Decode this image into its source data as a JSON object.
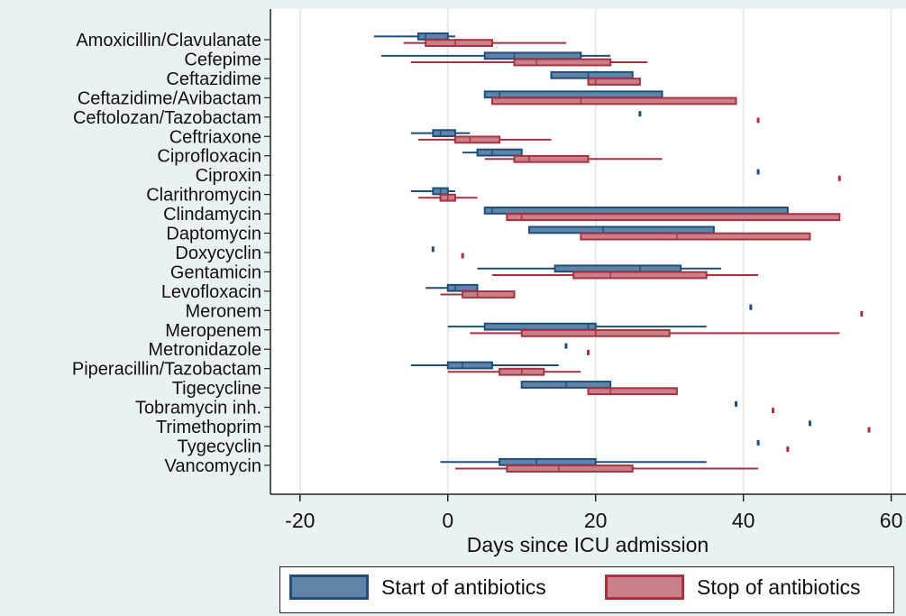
{
  "chart_data": {
    "type": "box",
    "orientation": "horizontal",
    "xlabel": "Days since ICU admission",
    "xlim": [
      -24,
      62
    ],
    "xticks": [
      -20,
      0,
      20,
      40,
      60
    ],
    "grid": true,
    "legend_position": "bottom",
    "categories": [
      "Amoxicillin/Clavulanate",
      "Cefepime",
      "Ceftazidime",
      "Ceftazidime/Avibactam",
      "Ceftolozan/Tazobactam",
      "Ceftriaxone",
      "Ciprofloxacin",
      "Ciproxin",
      "Clarithromycin",
      "Clindamycin",
      "Daptomycin",
      "Doxycyclin",
      "Gentamicin",
      "Levofloxacin",
      "Meronem",
      "Meropenem",
      "Metronidazole",
      "Piperacillin/Tazobactam",
      "Tigecycline",
      "Tobramycin inh.",
      "Trimethoprim",
      "Tygecyclin",
      "Vancomycin"
    ],
    "series": [
      {
        "name": "Start of antibiotics",
        "color": "#1f4e79",
        "fill": "#5f84a8",
        "boxes": [
          {
            "min": -10,
            "q1": -4,
            "median": -3,
            "q3": 0,
            "max": 1
          },
          {
            "min": -9,
            "q1": 5,
            "median": 9,
            "q3": 18,
            "max": 22
          },
          {
            "min": 14,
            "q1": 14,
            "median": 19,
            "q3": 25,
            "max": 25
          },
          {
            "min": 5,
            "q1": 5,
            "median": 7,
            "q3": 29,
            "max": 29
          },
          {
            "min": 26,
            "q1": 26,
            "median": 26,
            "q3": 26,
            "max": 26
          },
          {
            "min": -5,
            "q1": -2,
            "median": -1,
            "q3": 1,
            "max": 3
          },
          {
            "min": 2,
            "q1": 4,
            "median": 6,
            "q3": 10,
            "max": 10
          },
          {
            "min": 42,
            "q1": 42,
            "median": 42,
            "q3": 42,
            "max": 42
          },
          {
            "min": -5,
            "q1": -2,
            "median": -1,
            "q3": 0,
            "max": 1
          },
          {
            "min": 5,
            "q1": 5,
            "median": 6,
            "q3": 46,
            "max": 46
          },
          {
            "min": 11,
            "q1": 11,
            "median": 21,
            "q3": 36,
            "max": 36
          },
          {
            "min": -2,
            "q1": -2,
            "median": -2,
            "q3": -2,
            "max": -2
          },
          {
            "min": 4,
            "q1": 14.5,
            "median": 26,
            "q3": 31.5,
            "max": 37
          },
          {
            "min": -3,
            "q1": 0,
            "median": 1,
            "q3": 4,
            "max": 4
          },
          {
            "min": 41,
            "q1": 41,
            "median": 41,
            "q3": 41,
            "max": 41
          },
          {
            "min": 0,
            "q1": 5,
            "median": 19,
            "q3": 20,
            "max": 35
          },
          {
            "min": 16,
            "q1": 16,
            "median": 16,
            "q3": 16,
            "max": 16
          },
          {
            "min": -5,
            "q1": 0,
            "median": 2,
            "q3": 6,
            "max": 15
          },
          {
            "min": 10,
            "q1": 10,
            "median": 16,
            "q3": 22,
            "max": 22
          },
          {
            "min": 39,
            "q1": 39,
            "median": 39,
            "q3": 39,
            "max": 39
          },
          {
            "min": 49,
            "q1": 49,
            "median": 49,
            "q3": 49,
            "max": 49
          },
          {
            "min": 42,
            "q1": 42,
            "median": 42,
            "q3": 42,
            "max": 42
          },
          {
            "min": -1,
            "q1": 7,
            "median": 12,
            "q3": 20,
            "max": 35
          }
        ]
      },
      {
        "name": "Stop of antibiotics",
        "color": "#a83240",
        "fill": "#c98089",
        "boxes": [
          {
            "min": -6,
            "q1": -3,
            "median": 1,
            "q3": 6,
            "max": 16
          },
          {
            "min": -5,
            "q1": 9,
            "median": 12,
            "q3": 22,
            "max": 27
          },
          {
            "min": 19,
            "q1": 19,
            "median": 20,
            "q3": 26,
            "max": 26
          },
          {
            "min": 6,
            "q1": 6,
            "median": 18,
            "q3": 39,
            "max": 39
          },
          {
            "min": 42,
            "q1": 42,
            "median": 42,
            "q3": 42,
            "max": 42
          },
          {
            "min": -4,
            "q1": 1,
            "median": 3,
            "q3": 7,
            "max": 14
          },
          {
            "min": 5,
            "q1": 9,
            "median": 11,
            "q3": 19,
            "max": 29
          },
          {
            "min": 53,
            "q1": 53,
            "median": 53,
            "q3": 53,
            "max": 53
          },
          {
            "min": -4,
            "q1": -1,
            "median": 0,
            "q3": 1,
            "max": 4
          },
          {
            "min": 8,
            "q1": 8,
            "median": 10,
            "q3": 53,
            "max": 53
          },
          {
            "min": 18,
            "q1": 18,
            "median": 31,
            "q3": 49,
            "max": 49
          },
          {
            "min": 2,
            "q1": 2,
            "median": 2,
            "q3": 2,
            "max": 2
          },
          {
            "min": 6,
            "q1": 17,
            "median": 22,
            "q3": 35,
            "max": 42
          },
          {
            "min": -1,
            "q1": 2,
            "median": 4,
            "q3": 9,
            "max": 9
          },
          {
            "min": 56,
            "q1": 56,
            "median": 56,
            "q3": 56,
            "max": 56
          },
          {
            "min": 3,
            "q1": 10,
            "median": 20,
            "q3": 30,
            "max": 53
          },
          {
            "min": 19,
            "q1": 19,
            "median": 19,
            "q3": 19,
            "max": 19
          },
          {
            "min": 0,
            "q1": 7,
            "median": 10,
            "q3": 13,
            "max": 18
          },
          {
            "min": 19,
            "q1": 19,
            "median": 22,
            "q3": 31,
            "max": 31
          },
          {
            "min": 44,
            "q1": 44,
            "median": 44,
            "q3": 44,
            "max": 44
          },
          {
            "min": 57,
            "q1": 57,
            "median": 57,
            "q3": 57,
            "max": 57
          },
          {
            "min": 46,
            "q1": 46,
            "median": 46,
            "q3": 46,
            "max": 46
          },
          {
            "min": 1,
            "q1": 8,
            "median": 15,
            "q3": 25,
            "max": 42
          }
        ]
      }
    ]
  },
  "legend": {
    "start_label": "Start of antibiotics",
    "stop_label": "Stop of antibiotics"
  }
}
